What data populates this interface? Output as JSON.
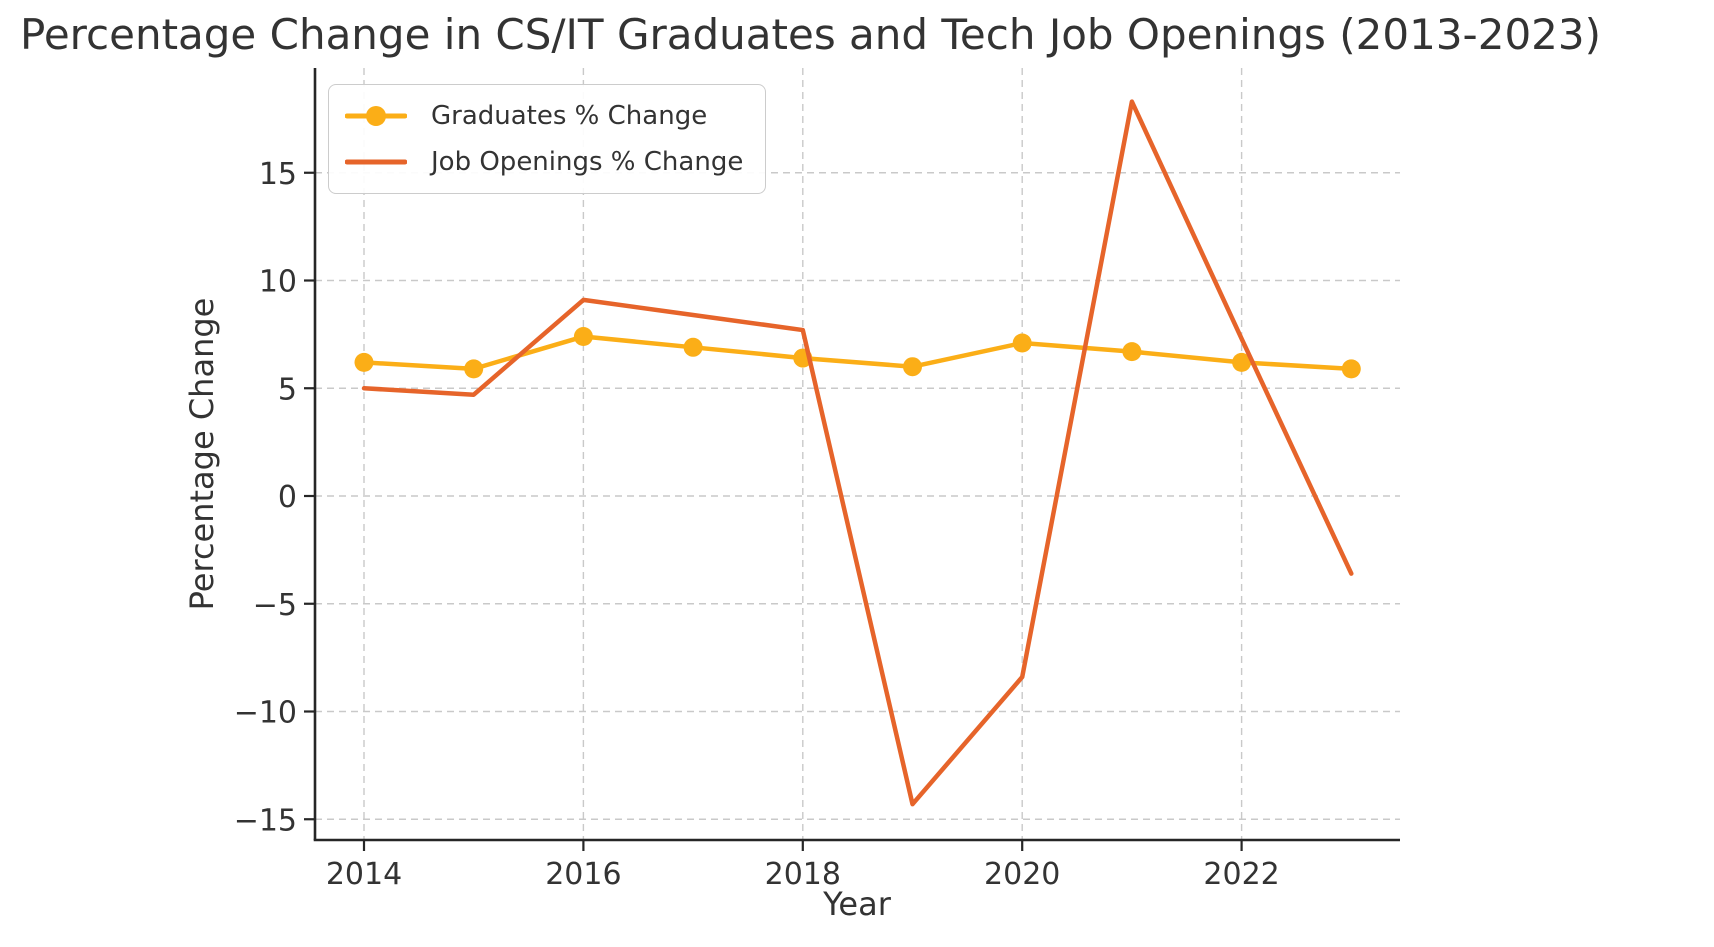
{
  "title": "Percentage Change in CS/IT Graduates and Tech Job Openings (2013-2023)",
  "axes": {
    "x_label": "Year",
    "y_label": "Percentage Change",
    "x_ticks": [
      {
        "value": 2014,
        "label": "2014"
      },
      {
        "value": 2016,
        "label": "2016"
      },
      {
        "value": 2018,
        "label": "2018"
      },
      {
        "value": 2020,
        "label": "2020"
      },
      {
        "value": 2022,
        "label": "2022"
      }
    ],
    "y_ticks": [
      {
        "value": 15,
        "label": "15"
      },
      {
        "value": 10,
        "label": "10"
      },
      {
        "value": 5,
        "label": "5"
      },
      {
        "value": 0,
        "label": "0"
      },
      {
        "value": -5,
        "label": "−5"
      },
      {
        "value": -10,
        "label": "−10"
      },
      {
        "value": -15,
        "label": "−15"
      }
    ]
  },
  "legend": {
    "position": "upper left",
    "entries": [
      {
        "label": "Graduates % Change",
        "color": "#FBAE17",
        "marker": true
      },
      {
        "label": "Job Openings % Change",
        "color": "#E6642A",
        "marker": false
      }
    ]
  },
  "colors": {
    "graduates": "#FBAE17",
    "job_openings": "#E6642A",
    "text": "#333333",
    "spine": "#262626",
    "grid": "#c9c9c9"
  },
  "chart_data": {
    "type": "line",
    "title": "Percentage Change in CS/IT Graduates and Tech Job Openings (2013-2023)",
    "xlabel": "Year",
    "ylabel": "Percentage Change",
    "x": [
      2014,
      2015,
      2016,
      2017,
      2018,
      2019,
      2020,
      2021,
      2022,
      2023
    ],
    "series": [
      {
        "name": "Graduates % Change",
        "color": "#FBAE17",
        "marker": "circle",
        "values": [
          6.2,
          5.9,
          7.4,
          6.9,
          6.4,
          6.0,
          7.1,
          6.7,
          6.2,
          5.9
        ]
      },
      {
        "name": "Job Openings % Change",
        "color": "#E6642A",
        "marker": "none",
        "values": [
          5.0,
          4.7,
          9.1,
          8.4,
          7.7,
          -14.3,
          -8.4,
          18.3,
          7.3,
          -3.6
        ]
      }
    ],
    "xlim": [
      2013.55,
      2023.45
    ],
    "ylim": [
      -16.0,
      19.9
    ],
    "grid": true,
    "grid_style": "dashed",
    "legend_position": "upper left"
  }
}
